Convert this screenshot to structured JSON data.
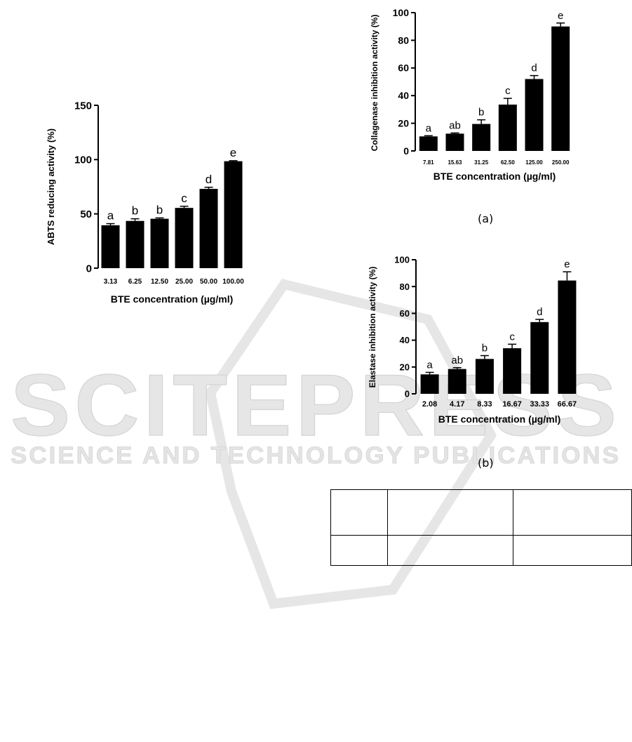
{
  "watermark": {
    "main": "SCITEPRESS",
    "sub": "SCIENCE AND TECHNOLOGY PUBLICATIONS"
  },
  "panel_labels": {
    "a": "(a)",
    "b": "(b)"
  },
  "table_stub": {
    "rows": [
      [
        "",
        "",
        ""
      ],
      [
        "",
        "",
        ""
      ]
    ]
  },
  "chart_data": [
    {
      "id": "abts",
      "type": "bar",
      "ylabel": "ABTS reducing activity (%)",
      "xlabel": "BTE concentration (µg/ml)",
      "categories": [
        "3.13",
        "6.25",
        "12.50",
        "25.00",
        "50.00",
        "100.00"
      ],
      "values": [
        39.5,
        43.5,
        45.5,
        55.5,
        73,
        98.5
      ],
      "errors": [
        1.5,
        2,
        0.8,
        1.5,
        1.5,
        0.5
      ],
      "significance": [
        "a",
        "b",
        "b",
        "c",
        "d",
        "e"
      ],
      "ylim": [
        0,
        150
      ],
      "yticks": [
        0,
        50,
        100,
        150
      ]
    },
    {
      "id": "collagenase",
      "type": "bar",
      "ylabel": "Collagenase inhibition activity (%)",
      "xlabel": "BTE concentration (µg/ml)",
      "categories": [
        "7.81",
        "15.63",
        "31.25",
        "62.50",
        "125.00",
        "250.00"
      ],
      "values": [
        10.5,
        12.5,
        19.5,
        33.5,
        52,
        90
      ],
      "errors": [
        0.5,
        0.5,
        3,
        4.5,
        2.5,
        2.5
      ],
      "significance": [
        "a",
        "ab",
        "b",
        "c",
        "d",
        "e"
      ],
      "ylim": [
        0,
        100
      ],
      "yticks": [
        0,
        20,
        40,
        60,
        80,
        100
      ]
    },
    {
      "id": "elastase",
      "type": "bar",
      "ylabel": "Elastase inhibition activity (%)",
      "xlabel": "BTE concentration (µg/ml)",
      "categories": [
        "2.08",
        "4.17",
        "8.33",
        "16.67",
        "33.33",
        "66.67"
      ],
      "values": [
        14.5,
        18.5,
        26,
        34,
        53.5,
        84.5
      ],
      "errors": [
        1.5,
        1,
        2.5,
        3,
        2,
        6.5
      ],
      "significance": [
        "a",
        "ab",
        "b",
        "c",
        "d",
        "e"
      ],
      "ylim": [
        0,
        100
      ],
      "yticks": [
        0,
        20,
        40,
        60,
        80,
        100
      ]
    }
  ]
}
